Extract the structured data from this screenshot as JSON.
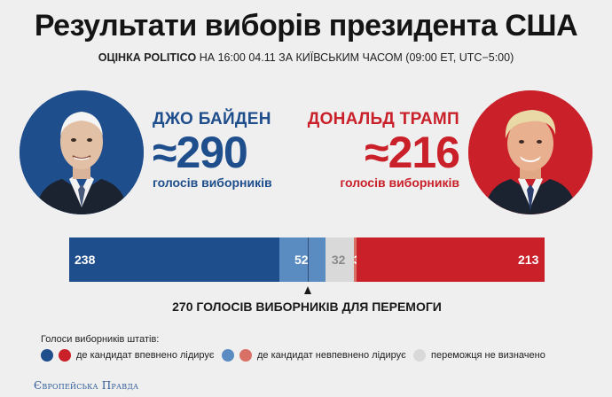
{
  "title": "Результати виборів президента США",
  "subtitle_bold": "ОЦІНКА POLITICO",
  "subtitle_rest": "НА 16:00 04.11 ЗА КИЇВСЬКИМ ЧАСОМ (09:00 ET, UTC−5:00)",
  "colors": {
    "dem_solid": "#1f4e8c",
    "dem_lean": "#5a8cc2",
    "rep_solid": "#c9202a",
    "rep_lean": "#d87066",
    "tossup": "#d9d9d9",
    "background": "#efefef"
  },
  "candidates": {
    "biden": {
      "name": "ДЖО БАЙДЕН",
      "count": "≈290",
      "sub": "голосів виборників",
      "portrait_icon": "biden-portrait"
    },
    "trump": {
      "name": "ДОНАЛЬД ТРАМП",
      "count": "≈216",
      "sub": "голосів виборників",
      "portrait_icon": "trump-portrait"
    }
  },
  "chart_data": {
    "type": "bar",
    "orientation": "horizontal-stacked",
    "total": 538,
    "threshold": 270,
    "threshold_label": "270 ГОЛОСІВ ВИБОРНИКІВ ДЛЯ ПЕРЕМОГИ",
    "segments": [
      {
        "key": "dem_solid",
        "value": 238,
        "label": "238",
        "color": "#1f4e8c"
      },
      {
        "key": "dem_lean",
        "value": 52,
        "label": "52",
        "color": "#5a8cc2"
      },
      {
        "key": "tossup",
        "value": 32,
        "label": "32",
        "color": "#d9d9d9"
      },
      {
        "key": "rep_lean",
        "value": 3,
        "label": "3",
        "color": "#d87066"
      },
      {
        "key": "rep_solid",
        "value": 213,
        "label": "213",
        "color": "#c9202a"
      }
    ]
  },
  "legend": {
    "title": "Голоси виборників штатів:",
    "items": [
      {
        "label": "де кандидат впевнено лідирує",
        "colors": [
          "#1f4e8c",
          "#c9202a"
        ]
      },
      {
        "label": "де кандидат невпевнено лідирує",
        "colors": [
          "#5a8cc2",
          "#d87066"
        ]
      },
      {
        "label": "переможця не визначено",
        "colors": [
          "#d9d9d9"
        ]
      }
    ]
  },
  "footer_logo": "Європейська Правда"
}
